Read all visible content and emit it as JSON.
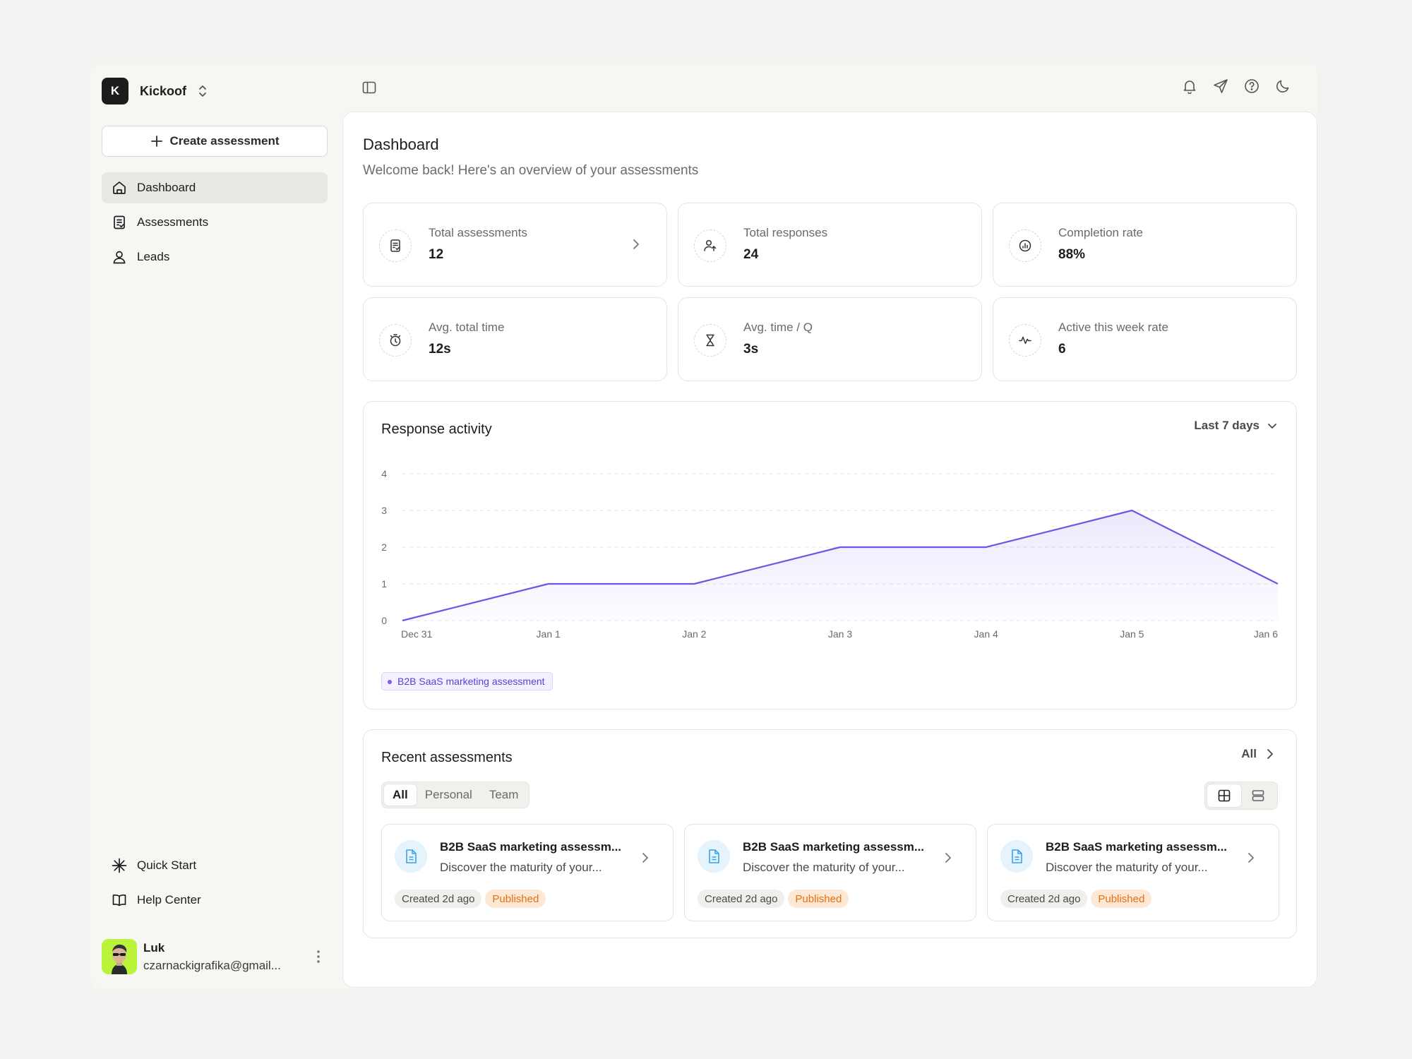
{
  "workspace": {
    "initial": "K",
    "name": "Kickoof"
  },
  "sidebar": {
    "create_label": "Create assessment",
    "items": [
      {
        "label": "Dashboard",
        "icon": "home-icon",
        "active": true
      },
      {
        "label": "Assessments",
        "icon": "clipboard-icon",
        "active": false
      },
      {
        "label": "Leads",
        "icon": "user-icon",
        "active": false
      }
    ],
    "bottom_items": [
      {
        "label": "Quick Start",
        "icon": "asterisk-icon"
      },
      {
        "label": "Help Center",
        "icon": "book-icon"
      }
    ],
    "user": {
      "name": "Luk",
      "email": "czarnackigrafika@gmail..."
    }
  },
  "topbar": {
    "icons": [
      "bell-icon",
      "send-icon",
      "help-icon",
      "moon-icon"
    ]
  },
  "header": {
    "title": "Dashboard",
    "subtitle": "Welcome back! Here's an overview of your assessments"
  },
  "stats": [
    {
      "label": "Total assessments",
      "value": "12",
      "icon": "clipboard-icon"
    },
    {
      "label": "Total responses",
      "value": "24",
      "icon": "user-plus-icon"
    },
    {
      "label": "Completion rate",
      "value": "88%",
      "icon": "chart-circle-icon"
    },
    {
      "label": "Avg. total time",
      "value": "12s",
      "icon": "stopwatch-icon"
    },
    {
      "label": "Avg. time / Q",
      "value": "3s",
      "icon": "hourglass-icon"
    },
    {
      "label": "Active this week rate",
      "value": "6",
      "icon": "activity-icon"
    }
  ],
  "chart": {
    "title": "Response activity",
    "range_label": "Last 7 days"
  },
  "chart_data": {
    "type": "area",
    "categories": [
      "Dec 31",
      "Jan 1",
      "Jan 2",
      "Jan 3",
      "Jan 4",
      "Jan 5",
      "Jan 6"
    ],
    "series": [
      {
        "name": "B2B SaaS marketing assessment",
        "values": [
          0,
          1,
          1,
          2,
          2,
          3,
          1
        ],
        "color": "#6e55e6"
      }
    ],
    "yticks": [
      "0",
      "1",
      "2",
      "3",
      "4"
    ],
    "ylim": [
      0,
      4
    ],
    "grid": true,
    "legend": "bottom-left"
  },
  "recent": {
    "title": "Recent assessments",
    "all_label": "All",
    "filters": [
      {
        "label": "All",
        "active": true
      },
      {
        "label": "Personal",
        "active": false
      },
      {
        "label": "Team",
        "active": false
      }
    ],
    "cards": [
      {
        "title": "B2B SaaS marketing assessm...",
        "desc": "Discover the maturity of your...",
        "created": "Created 2d ago",
        "status": "Published"
      },
      {
        "title": "B2B SaaS marketing assessm...",
        "desc": "Discover the maturity of your...",
        "created": "Created 2d ago",
        "status": "Published"
      },
      {
        "title": "B2B SaaS marketing assessm...",
        "desc": "Discover the maturity of your...",
        "created": "Created 2d ago",
        "status": "Published"
      }
    ]
  },
  "colors": {
    "accent": "#6e55e6",
    "published_bg": "#fde8d6",
    "published_text": "#e56f12"
  }
}
